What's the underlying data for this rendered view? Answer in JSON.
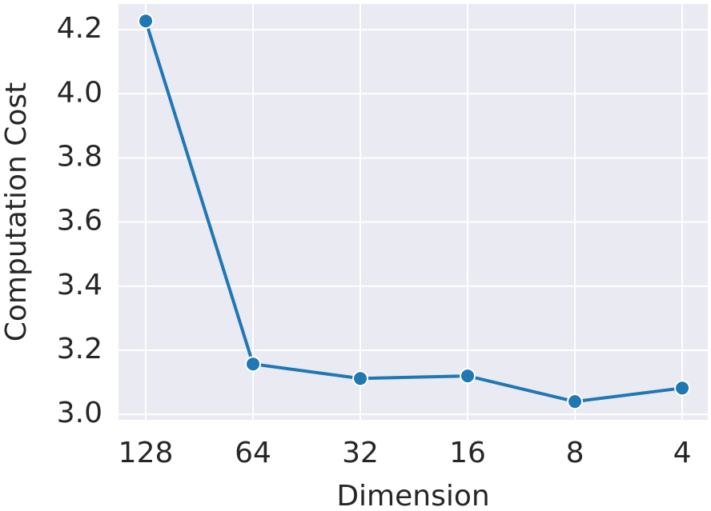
{
  "chart_data": {
    "type": "line",
    "x_label": "Dimension",
    "y_label": "Computation Cost",
    "categories": [
      "128",
      "64",
      "32",
      "16",
      "8",
      "4"
    ],
    "series": [
      {
        "name": "Computation Cost",
        "color": "#1f77b4",
        "values": [
          4.227,
          3.157,
          3.112,
          3.12,
          3.04,
          3.082
        ]
      }
    ],
    "ylim": [
      2.983,
      4.28
    ],
    "yticks": [
      {
        "value": 3,
        "label": "3.0"
      },
      3.2,
      3.4,
      3.6,
      3.8,
      {
        "value": 4,
        "label": "4.0"
      },
      4.2
    ],
    "grid": true
  }
}
